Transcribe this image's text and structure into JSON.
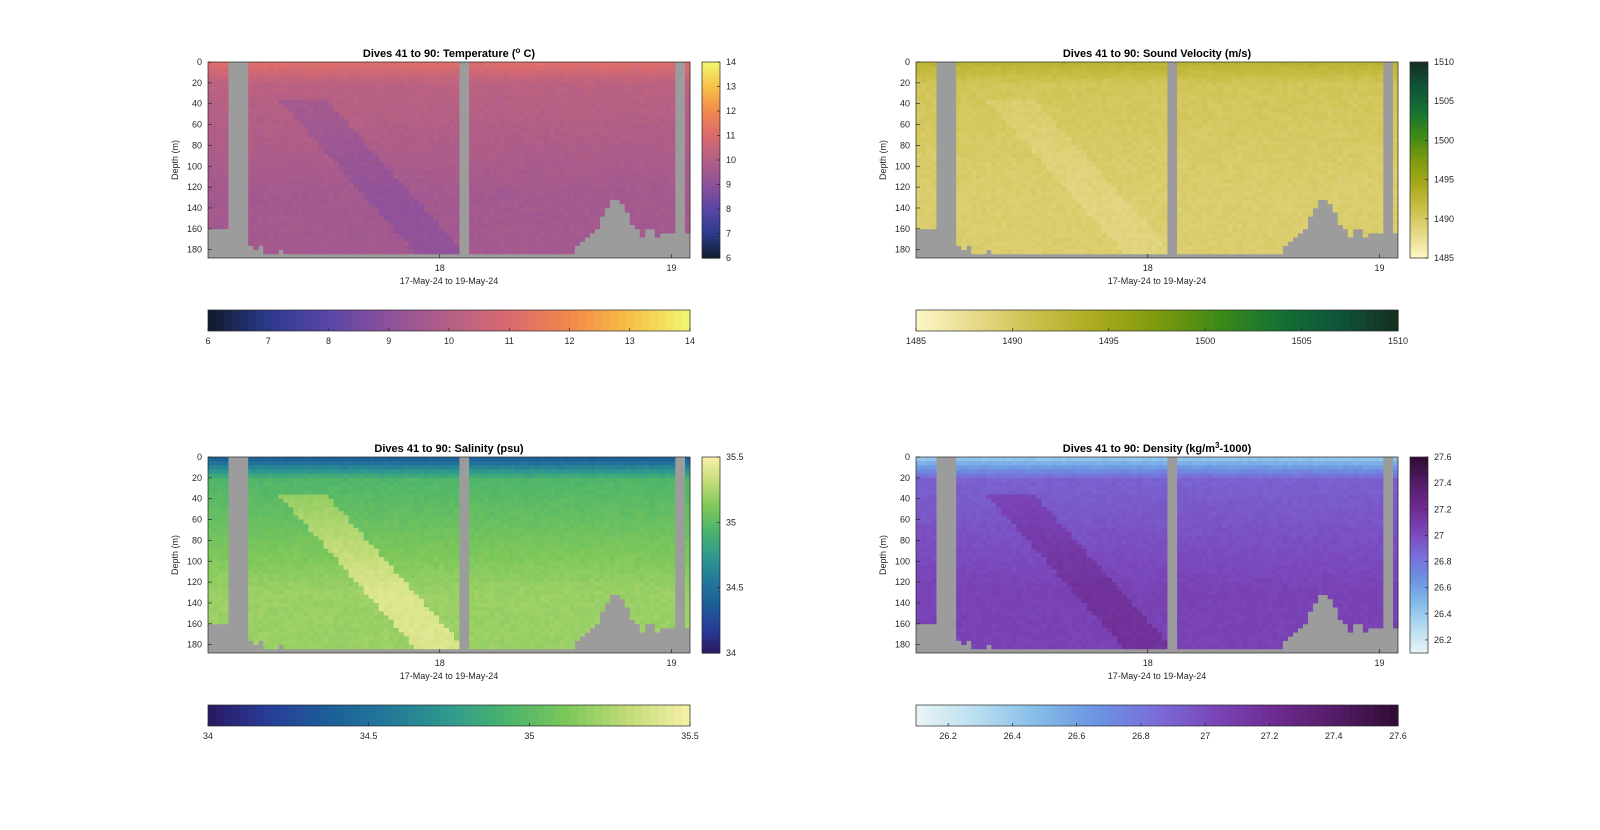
{
  "figure": {
    "background": "#ffffff",
    "nodata_color": "#9c9c9c"
  },
  "chart_data": [
    {
      "type": "heatmap",
      "id": "temperature",
      "title_main": "Dives 41 to 90: Temperature (",
      "title_sup": "o",
      "title_tail": " C)",
      "xlabel": "17-May-24 to 19-May-24",
      "ylabel": "Depth (m)",
      "x_ticks": [
        {
          "value": 18,
          "label": "18"
        },
        {
          "value": 19,
          "label": "19"
        }
      ],
      "xlim": [
        17.0,
        19.08
      ],
      "y_ticks": [
        0,
        20,
        40,
        60,
        80,
        100,
        120,
        140,
        160,
        180
      ],
      "ylim": [
        0,
        188
      ],
      "y_reversed": true,
      "clim": [
        6,
        14
      ],
      "colorbar_ticks": [
        6,
        7,
        8,
        9,
        10,
        11,
        12,
        13,
        14
      ],
      "colormap": [
        "#0f1a2b",
        "#2c3a8c",
        "#5a45a6",
        "#8d519b",
        "#b35f86",
        "#d96b6f",
        "#f2874b",
        "#f7c046",
        "#f1f771"
      ],
      "typical_values": {
        "surface": 11.2,
        "mid": 10.2,
        "deep": 9.6,
        "min": 9.2
      }
    },
    {
      "type": "heatmap",
      "id": "sound_velocity",
      "title_main": "Dives 41 to 90: Sound Velocity (m/s)",
      "title_sup": "",
      "title_tail": "",
      "xlabel": "17-May-24 to 19-May-24",
      "ylabel": "Depth (m)",
      "x_ticks": [
        {
          "value": 18,
          "label": "18"
        },
        {
          "value": 19,
          "label": "19"
        }
      ],
      "xlim": [
        17.0,
        19.08
      ],
      "y_ticks": [
        0,
        20,
        40,
        60,
        80,
        100,
        120,
        140,
        160,
        180
      ],
      "ylim": [
        0,
        188
      ],
      "y_reversed": true,
      "clim": [
        1485,
        1510
      ],
      "colorbar_ticks": [
        1485,
        1490,
        1495,
        1500,
        1505,
        1510
      ],
      "colormap": [
        "#fdf7c6",
        "#e6d98a",
        "#cbbf4a",
        "#a9aa1d",
        "#7f9a0c",
        "#3f8a17",
        "#147233",
        "#10543a",
        "#14301e"
      ],
      "typical_values": {
        "surface": 1493,
        "mid": 1490.5,
        "deep": 1489.5,
        "min": 1489
      }
    },
    {
      "type": "heatmap",
      "id": "salinity",
      "title_main": "Dives 41 to 90: Salinity (psu)",
      "title_sup": "",
      "title_tail": "",
      "xlabel": "17-May-24 to 19-May-24",
      "ylabel": "Depth (m)",
      "x_ticks": [
        {
          "value": 18,
          "label": "18"
        },
        {
          "value": 19,
          "label": "19"
        }
      ],
      "xlim": [
        17.0,
        19.08
      ],
      "y_ticks": [
        0,
        20,
        40,
        60,
        80,
        100,
        120,
        140,
        160,
        180
      ],
      "ylim": [
        0,
        188
      ],
      "y_reversed": true,
      "clim": [
        34,
        35.5
      ],
      "colorbar_ticks": [
        34,
        34.5,
        35,
        35.5
      ],
      "colormap": [
        "#2a1762",
        "#283d98",
        "#1c5e98",
        "#23789a",
        "#2f9a8e",
        "#4cb46b",
        "#7fc85a",
        "#c3dc78",
        "#f8f0a8"
      ],
      "typical_values": {
        "surface": 34.35,
        "mid": 34.95,
        "deep": 35.2,
        "min": 34.3
      }
    },
    {
      "type": "heatmap",
      "id": "density",
      "title_main": "Dives 41 to 90: Density (kg/m",
      "title_sup": "3",
      "title_tail": "-1000)",
      "xlabel": "17-May-24 to 19-May-24",
      "ylabel": "Depth (m)",
      "x_ticks": [
        {
          "value": 18,
          "label": "18"
        },
        {
          "value": 19,
          "label": "19"
        }
      ],
      "xlim": [
        17.0,
        19.08
      ],
      "y_ticks": [
        0,
        20,
        40,
        60,
        80,
        100,
        120,
        140,
        160,
        180
      ],
      "ylim": [
        0,
        188
      ],
      "y_reversed": true,
      "clim": [
        26.1,
        27.6
      ],
      "colorbar_ticks": [
        26.2,
        26.4,
        26.6,
        26.8,
        27,
        27.2,
        27.4,
        27.6
      ],
      "colormap": [
        "#eaf5f5",
        "#b9def0",
        "#86bde8",
        "#6b94e2",
        "#7a6cd9",
        "#7a44b7",
        "#6d2a8f",
        "#531b66",
        "#2f0c31"
      ],
      "typical_values": {
        "surface": 26.4,
        "mid": 26.9,
        "deep": 27.05,
        "min": 26.3
      }
    }
  ]
}
